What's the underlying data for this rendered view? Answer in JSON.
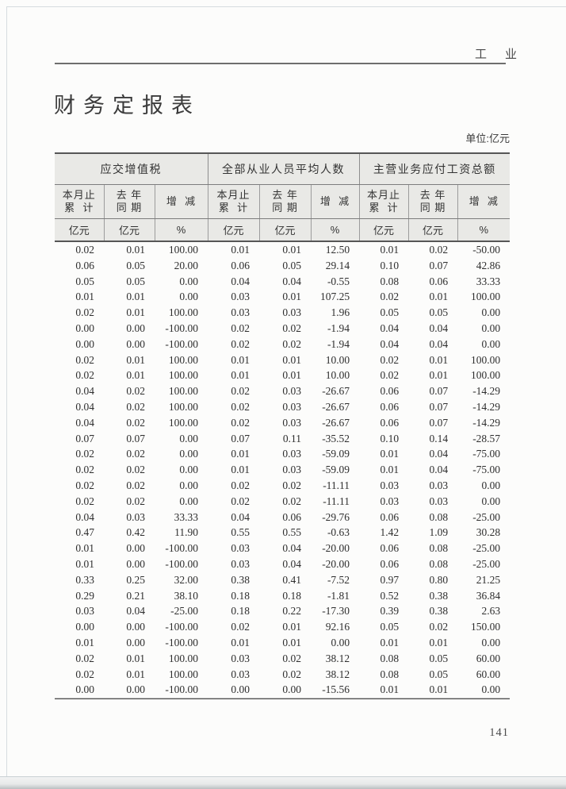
{
  "page": {
    "running_head": "工　业",
    "title": "财务定报表",
    "unit_note": "单位:亿元",
    "page_number": "141"
  },
  "table": {
    "groups": [
      {
        "label": "应交增值税"
      },
      {
        "label": "全部从业人员平均人数"
      },
      {
        "label": "主营业务应付工资总额"
      }
    ],
    "sub_columns": [
      "本月止\n累  计",
      "去 年\n同 期",
      "增  减"
    ],
    "units": [
      "亿元",
      "亿元",
      "%"
    ],
    "rows": [
      [
        "0.02",
        "0.01",
        "100.00",
        "0.01",
        "0.01",
        "12.50",
        "0.01",
        "0.02",
        "-50.00"
      ],
      [
        "0.06",
        "0.05",
        "20.00",
        "0.06",
        "0.05",
        "29.14",
        "0.10",
        "0.07",
        "42.86"
      ],
      [
        "0.05",
        "0.05",
        "0.00",
        "0.04",
        "0.04",
        "-0.55",
        "0.08",
        "0.06",
        "33.33"
      ],
      [
        "0.01",
        "0.01",
        "0.00",
        "0.03",
        "0.01",
        "107.25",
        "0.02",
        "0.01",
        "100.00"
      ],
      [
        "0.02",
        "0.01",
        "100.00",
        "0.03",
        "0.03",
        "1.96",
        "0.05",
        "0.05",
        "0.00"
      ],
      [
        "0.00",
        "0.00",
        "-100.00",
        "0.02",
        "0.02",
        "-1.94",
        "0.04",
        "0.04",
        "0.00"
      ],
      [
        "0.00",
        "0.00",
        "-100.00",
        "0.02",
        "0.02",
        "-1.94",
        "0.04",
        "0.04",
        "0.00"
      ],
      [
        "0.02",
        "0.01",
        "100.00",
        "0.01",
        "0.01",
        "10.00",
        "0.02",
        "0.01",
        "100.00"
      ],
      [
        "0.02",
        "0.01",
        "100.00",
        "0.01",
        "0.01",
        "10.00",
        "0.02",
        "0.01",
        "100.00"
      ],
      [
        "0.04",
        "0.02",
        "100.00",
        "0.02",
        "0.03",
        "-26.67",
        "0.06",
        "0.07",
        "-14.29"
      ],
      [
        "0.04",
        "0.02",
        "100.00",
        "0.02",
        "0.03",
        "-26.67",
        "0.06",
        "0.07",
        "-14.29"
      ],
      [
        "0.04",
        "0.02",
        "100.00",
        "0.02",
        "0.03",
        "-26.67",
        "0.06",
        "0.07",
        "-14.29"
      ],
      [
        "0.07",
        "0.07",
        "0.00",
        "0.07",
        "0.11",
        "-35.52",
        "0.10",
        "0.14",
        "-28.57"
      ],
      [
        "0.02",
        "0.02",
        "0.00",
        "0.01",
        "0.03",
        "-59.09",
        "0.01",
        "0.04",
        "-75.00"
      ],
      [
        "0.02",
        "0.02",
        "0.00",
        "0.01",
        "0.03",
        "-59.09",
        "0.01",
        "0.04",
        "-75.00"
      ],
      [
        "0.02",
        "0.02",
        "0.00",
        "0.02",
        "0.02",
        "-11.11",
        "0.03",
        "0.03",
        "0.00"
      ],
      [
        "0.02",
        "0.02",
        "0.00",
        "0.02",
        "0.02",
        "-11.11",
        "0.03",
        "0.03",
        "0.00"
      ],
      [
        "0.04",
        "0.03",
        "33.33",
        "0.04",
        "0.06",
        "-29.76",
        "0.06",
        "0.08",
        "-25.00"
      ],
      [
        "0.47",
        "0.42",
        "11.90",
        "0.55",
        "0.55",
        "-0.63",
        "1.42",
        "1.09",
        "30.28"
      ],
      [
        "0.01",
        "0.00",
        "-100.00",
        "0.03",
        "0.04",
        "-20.00",
        "0.06",
        "0.08",
        "-25.00"
      ],
      [
        "0.01",
        "0.00",
        "-100.00",
        "0.03",
        "0.04",
        "-20.00",
        "0.06",
        "0.08",
        "-25.00"
      ],
      [
        "0.33",
        "0.25",
        "32.00",
        "0.38",
        "0.41",
        "-7.52",
        "0.97",
        "0.80",
        "21.25"
      ],
      [
        "0.29",
        "0.21",
        "38.10",
        "0.18",
        "0.18",
        "-1.81",
        "0.52",
        "0.38",
        "36.84"
      ],
      [
        "0.03",
        "0.04",
        "-25.00",
        "0.18",
        "0.22",
        "-17.30",
        "0.39",
        "0.38",
        "2.63"
      ],
      [
        "0.00",
        "0.00",
        "-100.00",
        "0.02",
        "0.01",
        "92.16",
        "0.05",
        "0.02",
        "150.00"
      ],
      [
        "0.01",
        "0.00",
        "-100.00",
        "0.01",
        "0.01",
        "0.00",
        "0.01",
        "0.01",
        "0.00"
      ],
      [
        "0.02",
        "0.01",
        "100.00",
        "0.03",
        "0.02",
        "38.12",
        "0.08",
        "0.05",
        "60.00"
      ],
      [
        "0.02",
        "0.01",
        "100.00",
        "0.03",
        "0.02",
        "38.12",
        "0.08",
        "0.05",
        "60.00"
      ],
      [
        "0.00",
        "0.00",
        "-100.00",
        "0.00",
        "0.00",
        "-15.56",
        "0.01",
        "0.01",
        "0.00"
      ]
    ]
  }
}
